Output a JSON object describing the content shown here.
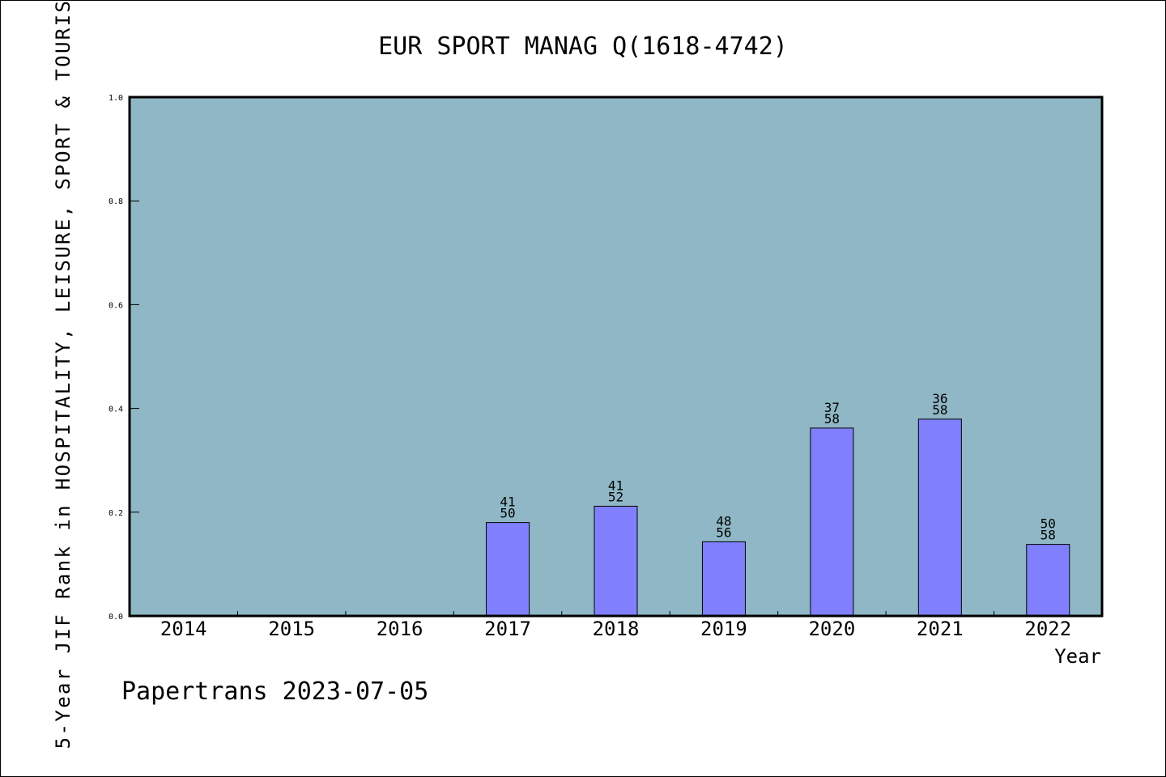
{
  "chart_data": {
    "type": "bar",
    "title": "EUR SPORT MANAG Q(1618-4742)",
    "xlabel": "Year",
    "ylabel": "5-Year JIF Rank in HOSPITALITY, LEISURE, SPORT & TOURIS",
    "categories": [
      "2014",
      "2015",
      "2016",
      "2017",
      "2018",
      "2019",
      "2020",
      "2021",
      "2022"
    ],
    "values": [
      null,
      null,
      null,
      0.18,
      0.2115,
      0.1429,
      0.3621,
      0.3793,
      0.1379
    ],
    "labels": [
      null,
      null,
      null,
      {
        "rank": "41",
        "total": "50"
      },
      {
        "rank": "41",
        "total": "52"
      },
      {
        "rank": "48",
        "total": "56"
      },
      {
        "rank": "37",
        "total": "58"
      },
      {
        "rank": "36",
        "total": "58"
      },
      {
        "rank": "50",
        "total": "58"
      }
    ],
    "ylim": [
      0,
      1
    ],
    "yticks": [
      "0.0",
      "0.2",
      "0.4",
      "0.6",
      "0.8",
      "1.0"
    ],
    "grid": false,
    "colors": {
      "plot_background": "#8fb7c5",
      "bar": "#8080ff",
      "bar_border": "#000000",
      "axis": "#000000"
    }
  },
  "footer": "Papertrans 2023-07-05"
}
